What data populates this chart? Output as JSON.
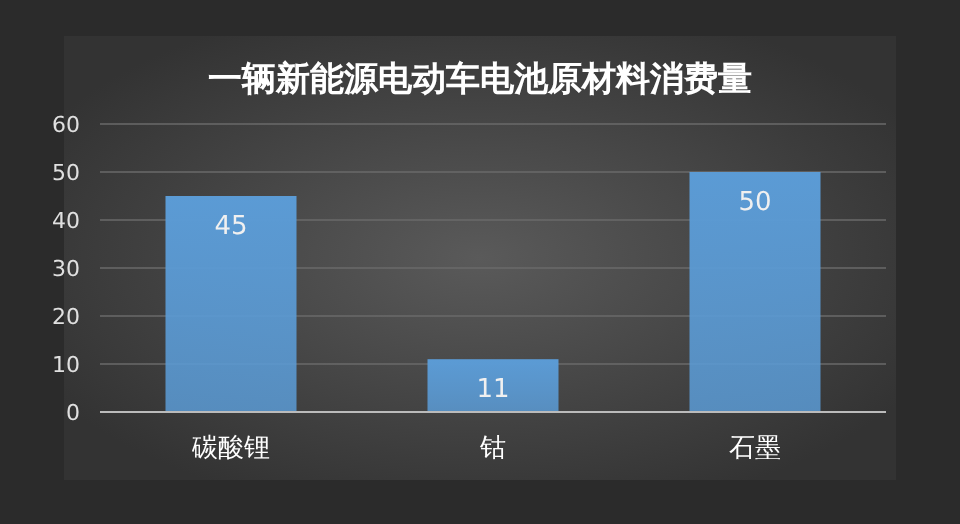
{
  "chart_data": {
    "type": "bar",
    "title": "一辆新能源电动车电池原材料消费量",
    "categories": [
      "碳酸锂",
      "钴",
      "石墨"
    ],
    "values": [
      45,
      11,
      50
    ],
    "color": "#5b9bd5",
    "ylim": [
      0,
      60
    ],
    "yticks": [
      0,
      10,
      20,
      30,
      40,
      50,
      60
    ],
    "grid": "y",
    "data_labels": true
  }
}
